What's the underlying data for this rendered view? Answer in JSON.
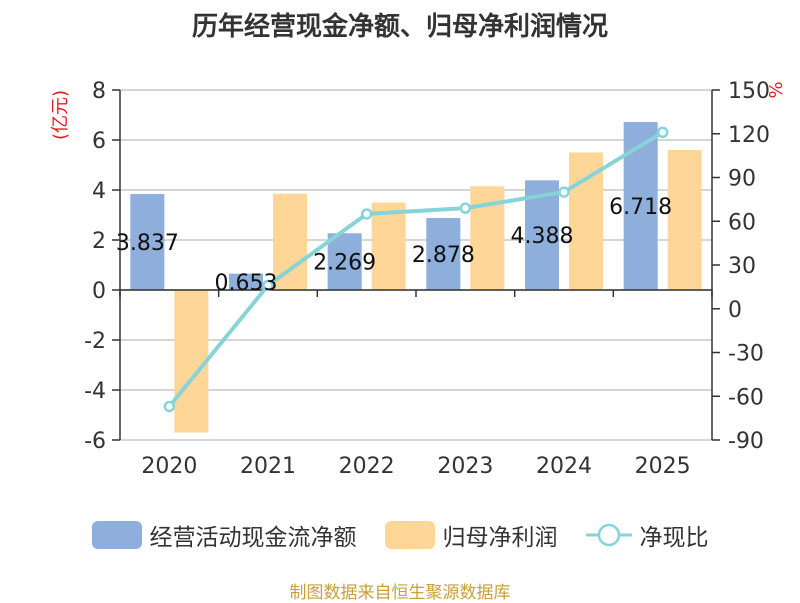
{
  "title": "历年经营现金净额、归母净利润情况",
  "source": "制图数据来自恒生聚源数据库",
  "colors": {
    "cash": "#8eaedb",
    "profit": "#fdd698",
    "ratio": "#86d4d8",
    "unit": "#e02020"
  },
  "chart_data": {
    "type": "bar+line",
    "categories": [
      "2020",
      "2021",
      "2022",
      "2023",
      "2024",
      "2025"
    ],
    "left_axis": {
      "label": "(亿元)",
      "ylim": [
        -6,
        8
      ],
      "ticks": [
        -6,
        -4,
        -2,
        0,
        2,
        4,
        6,
        8
      ]
    },
    "right_axis": {
      "label": "%",
      "ylim": [
        -90,
        150
      ],
      "ticks": [
        -90,
        -60,
        -30,
        0,
        30,
        60,
        90,
        120,
        150
      ]
    },
    "series": [
      {
        "name": "经营活动现金流净额",
        "kind": "bar",
        "axis": "left",
        "values": [
          3.837,
          0.653,
          2.269,
          2.878,
          4.388,
          6.718
        ],
        "labels": [
          "3.837",
          "0.653",
          "2.269",
          "2.878",
          "4.388",
          "6.718"
        ]
      },
      {
        "name": "归母净利润",
        "kind": "bar",
        "axis": "left",
        "values": [
          -5.7,
          3.85,
          3.5,
          4.15,
          5.5,
          5.6
        ]
      },
      {
        "name": "净现比",
        "kind": "line",
        "axis": "right",
        "values": [
          -67,
          16,
          65,
          69,
          80,
          121
        ]
      }
    ],
    "legend": [
      "经营活动现金流净额",
      "归母净利润",
      "净现比"
    ]
  }
}
